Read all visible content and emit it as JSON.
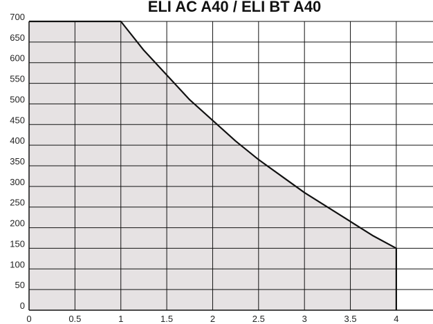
{
  "chart_data": {
    "type": "area",
    "title": "ELI AC A40 / ELI BT A40",
    "xlabel": "",
    "ylabel": "",
    "xlim": [
      0,
      4.4
    ],
    "ylim": [
      0,
      700
    ],
    "x_ticks": [
      "0",
      "0.5",
      "1",
      "1.5",
      "2",
      "2.5",
      "3",
      "3.5",
      "4"
    ],
    "y_ticks": [
      "0",
      "50",
      "100",
      "150",
      "200",
      "250",
      "300",
      "350",
      "400",
      "450",
      "500",
      "550",
      "600",
      "650",
      "700"
    ],
    "grid": true,
    "legend": "none",
    "series": [
      {
        "x": [
          0,
          0.5,
          1.0,
          1.25,
          1.5,
          1.75,
          2.0,
          2.25,
          2.5,
          2.75,
          3.0,
          3.25,
          3.5,
          3.75,
          4.0,
          4.0
        ],
        "values": [
          700,
          700,
          700,
          630,
          570,
          510,
          460,
          410,
          365,
          325,
          285,
          250,
          215,
          180,
          150,
          0
        ]
      }
    ],
    "colors": {
      "fill": "#e6e2e3",
      "line": "#111111",
      "grid": "#111111",
      "background": "#ffffff"
    }
  }
}
